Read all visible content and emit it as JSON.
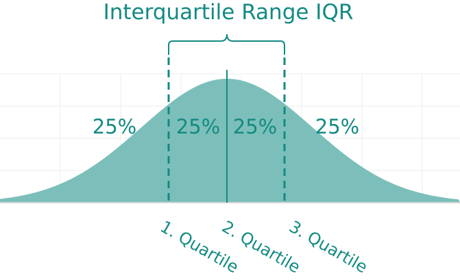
{
  "title": "Interquartile Range IQR",
  "segments": [
    {
      "label": "25%"
    },
    {
      "label": "25%"
    },
    {
      "label": "25%"
    },
    {
      "label": "25%"
    }
  ],
  "quartiles": [
    {
      "label": "1. Quartile"
    },
    {
      "label": "2. Quartile"
    },
    {
      "label": "3. Quartile"
    }
  ],
  "colors": {
    "accent": "#138a82",
    "fill": "#7cbfba",
    "grid": "#ececec",
    "axis": "#d7d7d7"
  }
}
